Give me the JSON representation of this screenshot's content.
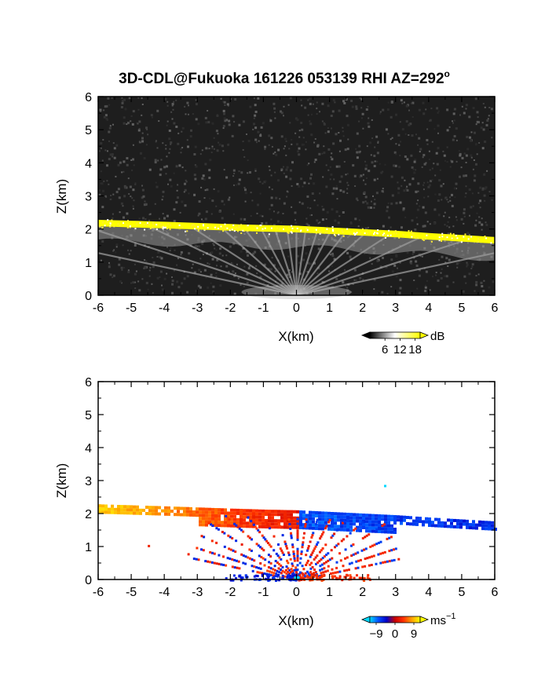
{
  "figure": {
    "title": "3D-CDL@Fukuoka 161226 053139 RHI AZ=292",
    "title_superscript": "o"
  },
  "chart_data": [
    {
      "type": "heatmap",
      "name": "reflectivity",
      "xlabel": "X(km)",
      "ylabel": "Z(km)",
      "xlim": [
        -6,
        6
      ],
      "ylim": [
        0,
        6
      ],
      "xticks": [
        "-6",
        "-5",
        "-4",
        "-3",
        "-2",
        "-1",
        "0",
        "1",
        "2",
        "3",
        "4",
        "5",
        "6"
      ],
      "yticks": [
        "0",
        "1",
        "2",
        "3",
        "4",
        "5",
        "6"
      ],
      "colorbar": {
        "unit": "dB",
        "ticks": [
          "6",
          "12",
          "18"
        ],
        "range": [
          0,
          20
        ],
        "colors": [
          "#000000",
          "#ffffff",
          "#ffff00"
        ]
      },
      "layer_top_km": [
        [
          -6,
          2.28
        ],
        [
          -4,
          2.22
        ],
        [
          -2,
          2.15
        ],
        [
          -1,
          2.12
        ],
        [
          0,
          2.1
        ],
        [
          1,
          2.05
        ],
        [
          2,
          2.0
        ],
        [
          3,
          1.95
        ],
        [
          4,
          1.88
        ],
        [
          5,
          1.82
        ],
        [
          6,
          1.76
        ]
      ],
      "layer_thickness_km": 0.2,
      "fan_origin_km": [
        0,
        0
      ],
      "fan_angles_deg": [
        12,
        18,
        25,
        33,
        42,
        52,
        62,
        72,
        82,
        90,
        98,
        108,
        118,
        128,
        138,
        147,
        155,
        162,
        168
      ]
    },
    {
      "type": "heatmap",
      "name": "doppler-velocity",
      "xlabel": "X(km)",
      "ylabel": "Z(km)",
      "xlim": [
        -6,
        6
      ],
      "ylim": [
        0,
        6
      ],
      "xticks": [
        "-6",
        "-5",
        "-4",
        "-3",
        "-2",
        "-1",
        "0",
        "1",
        "2",
        "3",
        "4",
        "5",
        "6"
      ],
      "yticks": [
        "0",
        "1",
        "2",
        "3",
        "4",
        "5",
        "6"
      ],
      "colorbar": {
        "unit": "ms",
        "unit_superscript": "−1",
        "ticks": [
          "−9",
          "0",
          "9"
        ],
        "range": [
          -12,
          12
        ],
        "colors": [
          "#00d8ff",
          "#0050ff",
          "#0000c8",
          "#c80000",
          "#ff3000",
          "#ffa000",
          "#ffff00"
        ]
      },
      "velocity_left_ms": 10,
      "velocity_right_ms": -8
    }
  ]
}
